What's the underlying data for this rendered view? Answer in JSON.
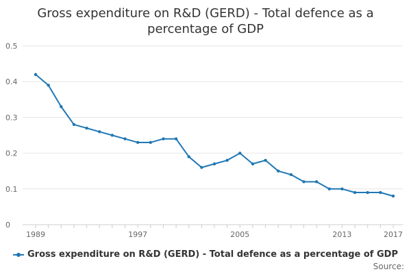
{
  "chart_data": {
    "type": "line",
    "title": "Gross expenditure on R&D (GERD) - Total defence as a percentage of GDP",
    "xlabel": "",
    "ylabel": "",
    "x": [
      1989,
      1990,
      1991,
      1992,
      1993,
      1994,
      1995,
      1996,
      1997,
      1998,
      1999,
      2000,
      2001,
      2002,
      2003,
      2004,
      2005,
      2006,
      2007,
      2008,
      2009,
      2010,
      2011,
      2012,
      2013,
      2014,
      2015,
      2016,
      2017
    ],
    "series": [
      {
        "name": "Gross expenditure on R&D (GERD) - Total defence as a percentage of GDP",
        "values": [
          0.42,
          0.39,
          0.33,
          0.28,
          0.27,
          0.26,
          0.25,
          0.24,
          0.23,
          0.23,
          0.24,
          0.24,
          0.19,
          0.16,
          0.17,
          0.18,
          0.2,
          0.17,
          0.18,
          0.15,
          0.14,
          0.12,
          0.12,
          0.1,
          0.1,
          0.09,
          0.09,
          0.09,
          0.08
        ]
      }
    ],
    "xticks": [
      "1989",
      "1997",
      "2005",
      "2013",
      "2017"
    ],
    "yticks": [
      "0",
      "0.1",
      "0.2",
      "0.3",
      "0.4",
      "0.5"
    ],
    "ylim": [
      0,
      0.5
    ],
    "grid": true,
    "legend": "bottom",
    "line_color": "#1f77b4"
  },
  "source_label": "Source:"
}
